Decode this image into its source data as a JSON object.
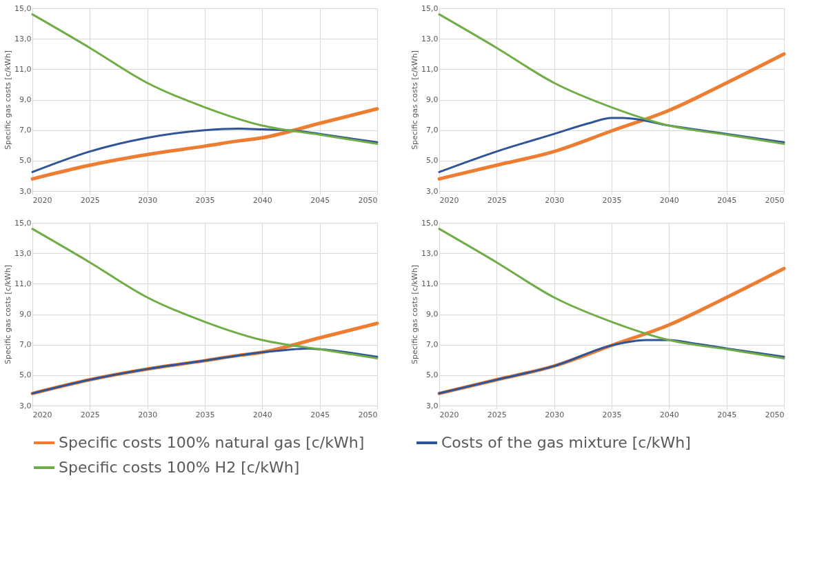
{
  "chart_data": [
    {
      "type": "line",
      "ylabel": "Specific gas costs [c/kWh]",
      "xlim": [
        2020,
        2050
      ],
      "xticks": [
        2020,
        2025,
        2030,
        2035,
        2040,
        2045,
        2050
      ],
      "ylim": [
        3,
        15
      ],
      "yticks": [
        {
          "value": 3,
          "label": "3,0"
        },
        {
          "value": 5,
          "label": "5,0"
        },
        {
          "value": 7,
          "label": "7,0"
        },
        {
          "value": 9,
          "label": "9,0"
        },
        {
          "value": 11,
          "label": "11,0"
        },
        {
          "value": 13,
          "label": "13,0"
        },
        {
          "value": 15,
          "label": "15,0"
        }
      ],
      "grid": true,
      "legend": "bottom",
      "line_style": "solid",
      "marker": "none",
      "series": [
        {
          "name": "Specific costs 100%  natural gas [c/kWh]",
          "color": "#ed7d31",
          "x": [
            2020,
            2025,
            2030,
            2035,
            2038,
            2040,
            2045,
            2050
          ],
          "values": [
            3.8,
            4.7,
            5.4,
            5.95,
            6.3,
            6.5,
            7.45,
            8.4
          ]
        },
        {
          "name": "Costs of the gas mixture [c/kWh]",
          "color": "#2f5597",
          "x": [
            2020,
            2025,
            2030,
            2035,
            2038,
            2040,
            2043,
            2045,
            2050
          ],
          "values": [
            4.25,
            5.6,
            6.5,
            7.0,
            7.1,
            7.05,
            6.95,
            6.75,
            6.2
          ]
        },
        {
          "name": "Specific costs 100% H2 [c/kWh]",
          "color": "#70ad47",
          "x": [
            2020,
            2025,
            2030,
            2035,
            2040,
            2045,
            2050
          ],
          "values": [
            14.6,
            12.4,
            10.1,
            8.5,
            7.3,
            6.7,
            6.1
          ]
        }
      ]
    },
    {
      "type": "line",
      "ylabel": "Specific gas costs [c/kWh]",
      "xlim": [
        2020,
        2050
      ],
      "xticks": [
        2020,
        2025,
        2030,
        2035,
        2040,
        2045,
        2050
      ],
      "ylim": [
        3,
        15
      ],
      "yticks": [
        {
          "value": 3,
          "label": "3,0"
        },
        {
          "value": 5,
          "label": "5,0"
        },
        {
          "value": 7,
          "label": "7,0"
        },
        {
          "value": 9,
          "label": "9,0"
        },
        {
          "value": 11,
          "label": "11,0"
        },
        {
          "value": 13,
          "label": "13,0"
        },
        {
          "value": 15,
          "label": "15,0"
        }
      ],
      "grid": true,
      "legend": "bottom",
      "line_style": "solid",
      "marker": "none",
      "series": [
        {
          "name": "Specific costs 100%  natural gas [c/kWh]",
          "color": "#ed7d31",
          "x": [
            2020,
            2025,
            2030,
            2035,
            2040,
            2045,
            2050
          ],
          "values": [
            3.8,
            4.7,
            5.6,
            6.95,
            8.3,
            10.1,
            12.0
          ]
        },
        {
          "name": "Costs of the gas mixture [c/kWh]",
          "color": "#2f5597",
          "x": [
            2020,
            2025,
            2030,
            2033,
            2035,
            2036,
            2040,
            2045,
            2050
          ],
          "values": [
            4.25,
            5.6,
            6.75,
            7.45,
            7.8,
            7.8,
            7.3,
            6.75,
            6.2
          ]
        },
        {
          "name": "Specific costs 100% H2 [c/kWh]",
          "color": "#70ad47",
          "x": [
            2020,
            2025,
            2030,
            2035,
            2040,
            2045,
            2050
          ],
          "values": [
            14.6,
            12.4,
            10.1,
            8.5,
            7.3,
            6.7,
            6.1
          ]
        }
      ]
    },
    {
      "type": "line",
      "ylabel": "Specific gas costs [c/kWh]",
      "xlim": [
        2020,
        2050
      ],
      "xticks": [
        2020,
        2025,
        2030,
        2035,
        2040,
        2045,
        2050
      ],
      "ylim": [
        3,
        15
      ],
      "yticks": [
        {
          "value": 3,
          "label": "3,0"
        },
        {
          "value": 5,
          "label": "5,0"
        },
        {
          "value": 7,
          "label": "7,0"
        },
        {
          "value": 9,
          "label": "9,0"
        },
        {
          "value": 11,
          "label": "11,0"
        },
        {
          "value": 13,
          "label": "13,0"
        },
        {
          "value": 15,
          "label": "15,0"
        }
      ],
      "grid": true,
      "legend": "bottom",
      "line_style": "solid",
      "marker": "none",
      "series": [
        {
          "name": "Specific costs 100%  natural gas [c/kWh]",
          "color": "#ed7d31",
          "x": [
            2020,
            2025,
            2030,
            2035,
            2038,
            2040,
            2045,
            2050
          ],
          "values": [
            3.8,
            4.7,
            5.4,
            5.95,
            6.3,
            6.5,
            7.45,
            8.4
          ]
        },
        {
          "name": "Costs of the gas mixture [c/kWh]",
          "color": "#2f5597",
          "x": [
            2020,
            2025,
            2030,
            2035,
            2040,
            2042,
            2044,
            2045,
            2050
          ],
          "values": [
            3.8,
            4.7,
            5.4,
            5.95,
            6.5,
            6.65,
            6.75,
            6.7,
            6.2
          ]
        },
        {
          "name": "Specific costs 100% H2 [c/kWh]",
          "color": "#70ad47",
          "x": [
            2020,
            2025,
            2030,
            2035,
            2040,
            2045,
            2050
          ],
          "values": [
            14.6,
            12.4,
            10.1,
            8.5,
            7.3,
            6.7,
            6.1
          ]
        }
      ]
    },
    {
      "type": "line",
      "ylabel": "Specific gas costs [c/kWh]",
      "xlim": [
        2020,
        2050
      ],
      "xticks": [
        2020,
        2025,
        2030,
        2035,
        2040,
        2045,
        2050
      ],
      "ylim": [
        3,
        15
      ],
      "yticks": [
        {
          "value": 3,
          "label": "3,0"
        },
        {
          "value": 5,
          "label": "5,0"
        },
        {
          "value": 7,
          "label": "7,0"
        },
        {
          "value": 9,
          "label": "9,0"
        },
        {
          "value": 11,
          "label": "11,0"
        },
        {
          "value": 13,
          "label": "13,0"
        },
        {
          "value": 15,
          "label": "15,0"
        }
      ],
      "grid": true,
      "legend": "bottom",
      "line_style": "solid",
      "marker": "none",
      "series": [
        {
          "name": "Specific costs 100%  natural gas [c/kWh]",
          "color": "#ed7d31",
          "x": [
            2020,
            2025,
            2030,
            2035,
            2040,
            2045,
            2050
          ],
          "values": [
            3.8,
            4.7,
            5.6,
            6.95,
            8.3,
            10.1,
            12.0
          ]
        },
        {
          "name": "Costs of the gas mixture [c/kWh]",
          "color": "#2f5597",
          "x": [
            2020,
            2025,
            2030,
            2035,
            2038,
            2040,
            2042,
            2045,
            2050
          ],
          "values": [
            3.8,
            4.7,
            5.6,
            6.95,
            7.3,
            7.3,
            7.1,
            6.75,
            6.2
          ]
        },
        {
          "name": "Specific costs 100% H2 [c/kWh]",
          "color": "#70ad47",
          "x": [
            2020,
            2025,
            2030,
            2035,
            2040,
            2045,
            2050
          ],
          "values": [
            14.6,
            12.4,
            10.1,
            8.5,
            7.3,
            6.7,
            6.1
          ]
        }
      ]
    }
  ]
}
